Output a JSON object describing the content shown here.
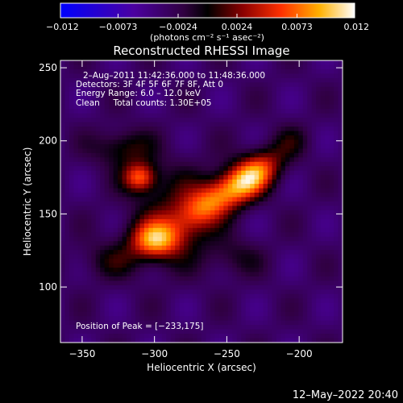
{
  "chart_data": {
    "type": "heatmap",
    "title": "Reconstructed RHESSI Image",
    "xlabel": "Heliocentric X (arcsec)",
    "ylabel": "Heliocentric Y (arcsec)",
    "xlim": [
      -365,
      -170
    ],
    "ylim": [
      62,
      255
    ],
    "x_ticks": [
      -350,
      -300,
      -250,
      -200
    ],
    "y_ticks": [
      100,
      150,
      200,
      250
    ],
    "colorbar": {
      "min": -0.012,
      "max": 0.012,
      "ticks": [
        -0.012,
        -0.0073,
        -0.0024,
        0.0024,
        0.0073,
        0.012
      ],
      "tick_labels": [
        "−0.012",
        "−0.0073",
        "−0.0024",
        "0.0024",
        "0.0073",
        "0.012"
      ],
      "units_label": "(photons cm⁻² s⁻¹ asec⁻²)"
    },
    "annotations": [
      "2–Aug–2011 11:42:36.000 to 11:48:36.000",
      "Detectors: 3F 4F 5F 6F 7F 8F, Att 0",
      "Energy Range: 6.0 – 12.0 keV",
      "Clean     Total counts: 1.30E+05"
    ],
    "peak_label": "Position of Peak = [−233,175]",
    "sources": [
      {
        "x": -233,
        "y": 175,
        "sx": 16,
        "sy": 9,
        "rot": -38,
        "amp": 0.012
      },
      {
        "x": -262,
        "y": 158,
        "sx": 20,
        "sy": 9,
        "rot": -38,
        "amp": 0.0085
      },
      {
        "x": -300,
        "y": 132,
        "sx": 12,
        "sy": 9,
        "rot": 0,
        "amp": 0.0105
      },
      {
        "x": -310,
        "y": 175,
        "sx": 8,
        "sy": 7,
        "rot": 0,
        "amp": 0.0095
      },
      {
        "x": -322,
        "y": 195,
        "sx": 14,
        "sy": 9,
        "rot": 0,
        "amp": 0.0045
      },
      {
        "x": -285,
        "y": 150,
        "sx": 20,
        "sy": 22,
        "rot": 0,
        "amp": 0.0045
      },
      {
        "x": -330,
        "y": 118,
        "sx": 16,
        "sy": 9,
        "rot": 0,
        "amp": 0.003
      },
      {
        "x": -245,
        "y": 120,
        "sx": 14,
        "sy": 9,
        "rot": 0,
        "amp": 0.0025
      },
      {
        "x": -205,
        "y": 200,
        "sx": 9,
        "sy": 8,
        "rot": 0,
        "amp": 0.0022
      }
    ],
    "background_level": -0.0035
  },
  "footer": {
    "date": "12–May–2022 20:40"
  }
}
